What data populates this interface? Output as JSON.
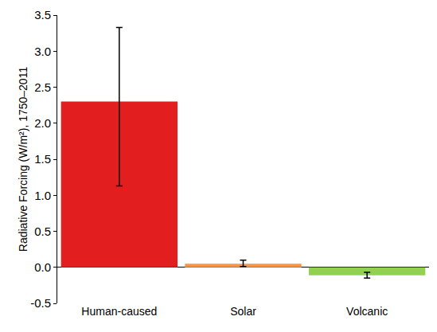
{
  "chart_data": {
    "type": "bar",
    "y_label": "Radiative Forcing (W/m²), 1750–2011",
    "categories": [
      "Human-caused",
      "Solar",
      "Volcanic"
    ],
    "values": [
      2.3,
      0.05,
      -0.11
    ],
    "error_low": [
      1.13,
      0.01,
      -0.15
    ],
    "error_high": [
      3.33,
      0.1,
      -0.07
    ],
    "colors": [
      "#e31e1e",
      "#f79646",
      "#92d050"
    ],
    "ylim": [
      -0.5,
      3.5
    ],
    "yticks": [
      {
        "value": -0.5,
        "label": "-0.5"
      },
      {
        "value": 0,
        "label": "0.0"
      },
      0.5,
      {
        "value": 1,
        "label": "1.0"
      },
      1.5,
      {
        "value": 2,
        "label": "2.0"
      },
      2.5,
      {
        "value": 3,
        "label": "3.0"
      },
      3.5
    ],
    "grid": false
  }
}
